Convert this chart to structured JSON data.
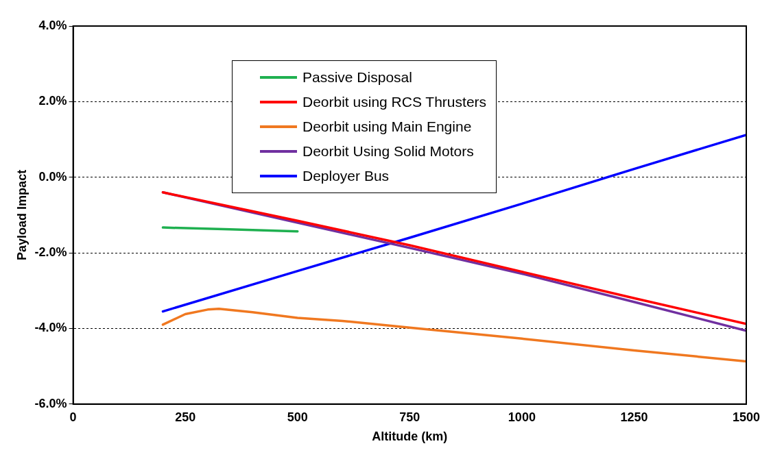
{
  "chart_data": {
    "type": "line",
    "xlabel": "Altitude (km)",
    "ylabel": "Payload Impact",
    "xlim": [
      0,
      1500
    ],
    "xticks": [
      0,
      250,
      500,
      750,
      1000,
      1250,
      1500
    ],
    "ylim": [
      -6,
      4
    ],
    "yticks": [
      {
        "value": -6,
        "label": "-6.0%"
      },
      {
        "value": -4,
        "label": "-4.0%"
      },
      {
        "value": -2,
        "label": "-2.0%"
      },
      {
        "value": 0,
        "label": "0.0%"
      },
      {
        "value": 2,
        "label": "2.0%"
      },
      {
        "value": 4,
        "label": "4.0%"
      }
    ],
    "grid": "y",
    "legend": "top left",
    "marker": "none",
    "line_style": "solid",
    "series": [
      {
        "name": "Passive Disposal",
        "color": "#1fb050",
        "x": [
          200,
          350,
          500
        ],
        "values": [
          -1.33,
          -1.38,
          -1.43
        ]
      },
      {
        "name": "Deorbit using RCS Thrusters",
        "color": "#ff0000",
        "x": [
          200,
          500,
          750,
          1000,
          1250,
          1500
        ],
        "values": [
          -0.4,
          -1.15,
          -1.8,
          -2.5,
          -3.2,
          -3.88
        ]
      },
      {
        "name": "Deorbit using Main Engine",
        "color": "#f07820",
        "x": [
          200,
          250,
          300,
          325,
          400,
          500,
          600,
          750,
          1000,
          1250,
          1500
        ],
        "values": [
          -3.9,
          -3.62,
          -3.5,
          -3.48,
          -3.57,
          -3.72,
          -3.8,
          -3.98,
          -4.27,
          -4.58,
          -4.87
        ]
      },
      {
        "name": "Deorbit Using Solid Motors",
        "color": "#7030a0",
        "x": [
          200,
          500,
          750,
          1000,
          1250,
          1500
        ],
        "values": [
          -0.4,
          -1.2,
          -1.87,
          -2.55,
          -3.3,
          -4.06
        ]
      },
      {
        "name": "Deployer Bus",
        "color": "#0000ff",
        "x": [
          200,
          500,
          750,
          1000,
          1250,
          1500
        ],
        "values": [
          -3.55,
          -2.48,
          -1.6,
          -0.7,
          0.22,
          1.12
        ]
      }
    ]
  }
}
